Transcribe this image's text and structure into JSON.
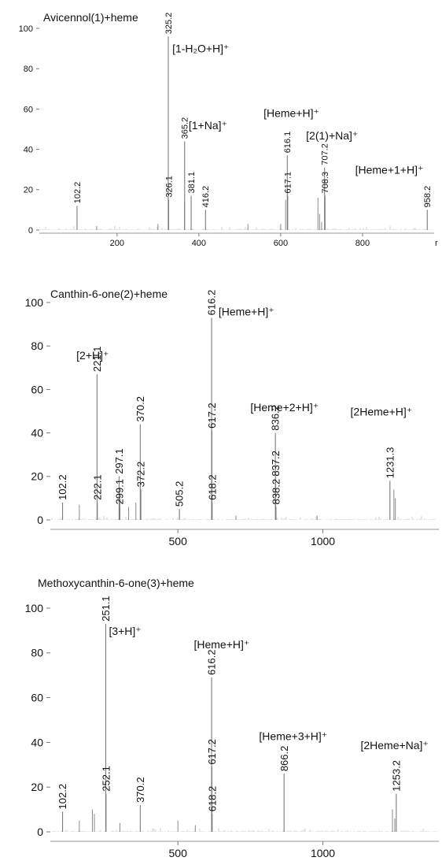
{
  "chart_data": [
    {
      "type": "bar",
      "title": "Avicennol(1)+heme",
      "xlabel": "",
      "ylabel": "",
      "ylim": [
        0,
        100
      ],
      "yticks": [
        0,
        20,
        40,
        60,
        80,
        100
      ],
      "xticks": [
        200,
        400,
        600,
        800
      ],
      "xlim": [
        10,
        975
      ],
      "x_trailing_label": "r",
      "peaks": [
        {
          "x": 102.2,
          "y": 12,
          "label": "102.2"
        },
        {
          "x": 325.2,
          "y": 96,
          "label": "325.2"
        },
        {
          "x": 326.1,
          "y": 15,
          "label": "326.1"
        },
        {
          "x": 365.2,
          "y": 44,
          "label": "365.2"
        },
        {
          "x": 381.1,
          "y": 17,
          "label": "381.1"
        },
        {
          "x": 416.2,
          "y": 10,
          "label": "416.2"
        },
        {
          "x": 616.1,
          "y": 37,
          "label": "616.1"
        },
        {
          "x": 617.1,
          "y": 17,
          "label": "617.1"
        },
        {
          "x": 707.2,
          "y": 31,
          "label": "707.2"
        },
        {
          "x": 708.3,
          "y": 17,
          "label": "708.3"
        },
        {
          "x": 958.2,
          "y": 10,
          "label": "958.2"
        }
      ],
      "minor_peaks": [
        {
          "x": 365.0,
          "y": 14
        },
        {
          "x": 600.0,
          "y": 3
        },
        {
          "x": 612.0,
          "y": 15
        },
        {
          "x": 691.0,
          "y": 16
        },
        {
          "x": 695.0,
          "y": 8
        },
        {
          "x": 520.0,
          "y": 3
        },
        {
          "x": 300.0,
          "y": 3
        },
        {
          "x": 150.0,
          "y": 2
        },
        {
          "x": 700.0,
          "y": 4
        }
      ],
      "annotations": [
        {
          "text": "[1-H₂O+H]⁺",
          "x": 335,
          "y": 88
        },
        {
          "text": "[1+Na]⁺",
          "x": 375,
          "y": 50
        },
        {
          "text": "[Heme+H]⁺",
          "x": 558,
          "y": 56
        },
        {
          "text": "[2(1)+Na]⁺",
          "x": 662,
          "y": 45
        },
        {
          "text": "[Heme+1+H]⁺",
          "x": 782,
          "y": 28
        }
      ]
    },
    {
      "type": "bar",
      "title": "Canthin-6-one(2)+heme",
      "xlabel": "",
      "ylabel": "",
      "ylim": [
        0,
        100
      ],
      "yticks": [
        0,
        20,
        40,
        60,
        80,
        100
      ],
      "xticks": [
        500,
        1000
      ],
      "xlim": [
        60,
        1400
      ],
      "peaks": [
        {
          "x": 102.2,
          "y": 8,
          "label": "102.2"
        },
        {
          "x": 221.1,
          "y": 67,
          "label": "221.1"
        },
        {
          "x": 222.1,
          "y": 8,
          "label": "222.1"
        },
        {
          "x": 297.1,
          "y": 20,
          "label": "297.1"
        },
        {
          "x": 299.1,
          "y": 6,
          "label": "299.1"
        },
        {
          "x": 370.2,
          "y": 44,
          "label": "370.2"
        },
        {
          "x": 372.2,
          "y": 14,
          "label": "372.2"
        },
        {
          "x": 505.2,
          "y": 5,
          "label": "505.2"
        },
        {
          "x": 616.2,
          "y": 93,
          "label": "616.2"
        },
        {
          "x": 617.2,
          "y": 41,
          "label": "617.2"
        },
        {
          "x": 618.2,
          "y": 8,
          "label": "618.2"
        },
        {
          "x": 836.2,
          "y": 40,
          "label": "836.2"
        },
        {
          "x": 837.2,
          "y": 19,
          "label": "837.2"
        },
        {
          "x": 838.2,
          "y": 6,
          "label": "838.2"
        },
        {
          "x": 1231.3,
          "y": 18,
          "label": "1231.3"
        }
      ],
      "minor_peaks": [
        {
          "x": 160.0,
          "y": 7
        },
        {
          "x": 300.0,
          "y": 10
        },
        {
          "x": 330.0,
          "y": 6
        },
        {
          "x": 355.0,
          "y": 8
        },
        {
          "x": 1245.0,
          "y": 14
        },
        {
          "x": 1250.0,
          "y": 10
        },
        {
          "x": 980.0,
          "y": 2
        },
        {
          "x": 700.0,
          "y": 2
        }
      ],
      "annotations": [
        {
          "text": "[2+H]⁺",
          "x": 150,
          "y": 74
        },
        {
          "text": "[Heme+H]⁺",
          "x": 640,
          "y": 94
        },
        {
          "text": "[Heme+2+H]⁺",
          "x": 750,
          "y": 50
        },
        {
          "text": "[2Heme+H]⁺",
          "x": 1095,
          "y": 48
        }
      ]
    },
    {
      "type": "bar",
      "title": "Methoxycanthin-6-one(3)+heme",
      "xlabel": "",
      "ylabel": "",
      "ylim": [
        0,
        100
      ],
      "yticks": [
        0,
        20,
        40,
        60,
        80,
        100
      ],
      "xticks": [
        500,
        1000
      ],
      "xlim": [
        60,
        1400
      ],
      "peaks": [
        {
          "x": 102.2,
          "y": 9,
          "label": "102.2"
        },
        {
          "x": 251.1,
          "y": 93,
          "label": "251.1"
        },
        {
          "x": 252.1,
          "y": 17,
          "label": "252.1"
        },
        {
          "x": 370.2,
          "y": 12,
          "label": "370.2"
        },
        {
          "x": 616.2,
          "y": 69,
          "label": "616.2"
        },
        {
          "x": 617.2,
          "y": 29,
          "label": "617.2"
        },
        {
          "x": 618.2,
          "y": 8,
          "label": "618.2"
        },
        {
          "x": 866.2,
          "y": 26,
          "label": "866.2"
        },
        {
          "x": 1253.2,
          "y": 17,
          "label": "1253.2"
        }
      ],
      "minor_peaks": [
        {
          "x": 205.0,
          "y": 10
        },
        {
          "x": 212.0,
          "y": 8
        },
        {
          "x": 160.0,
          "y": 5
        },
        {
          "x": 300.0,
          "y": 4
        },
        {
          "x": 500.0,
          "y": 5
        },
        {
          "x": 1240.0,
          "y": 10
        },
        {
          "x": 1248.0,
          "y": 6
        },
        {
          "x": 560.0,
          "y": 3
        }
      ],
      "annotations": [
        {
          "text": "[3+H]⁺",
          "x": 262,
          "y": 88
        },
        {
          "text": "[Heme+H]⁺",
          "x": 555,
          "y": 82
        },
        {
          "text": "[Heme+3+H]⁺",
          "x": 780,
          "y": 41
        },
        {
          "text": "[2Heme+Na]⁺",
          "x": 1130,
          "y": 37
        }
      ]
    }
  ]
}
